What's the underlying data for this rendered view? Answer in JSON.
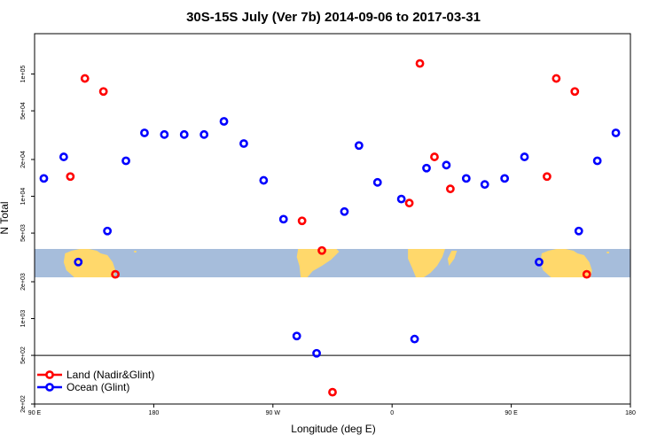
{
  "chart_data": {
    "type": "scatter",
    "title": "30S-15S July (Ver 7b)   2014-09-06 to 2017-03-31",
    "xlabel": "Longitude (deg E)",
    "ylabel": "N Total",
    "x_ticks": [
      {
        "value": 90,
        "label": "90 E"
      },
      {
        "value": 180,
        "label": "180"
      },
      {
        "value": 270,
        "label": "90 W"
      },
      {
        "value": 360,
        "label": "0"
      },
      {
        "value": 450,
        "label": "90 E"
      },
      {
        "value": 540,
        "label": "180"
      }
    ],
    "x_range": [
      90,
      540
    ],
    "y_scale": "log",
    "y_range": [
      200,
      200000
    ],
    "y_ticks": [
      {
        "value": 200,
        "label": "2e+02"
      },
      {
        "value": 500,
        "label": "5e+02"
      },
      {
        "value": 1000,
        "label": "1e+03"
      },
      {
        "value": 2000,
        "label": "2e+03"
      },
      {
        "value": 5000,
        "label": "5e+03"
      },
      {
        "value": 10000,
        "label": "1e+04"
      },
      {
        "value": 20000,
        "label": "2e+04"
      },
      {
        "value": 50000,
        "label": "5e+04"
      },
      {
        "value": 100000,
        "label": "1e+05"
      }
    ],
    "series": [
      {
        "name": "Land (Nadir&Glint)",
        "color": "#ff0000",
        "points": [
          {
            "x": 117,
            "y": 14500
          },
          {
            "x": 128,
            "y": 92000
          },
          {
            "x": 142,
            "y": 72000
          },
          {
            "x": 151,
            "y": 2300
          },
          {
            "x": 292,
            "y": 6300
          },
          {
            "x": 307,
            "y": 3600
          },
          {
            "x": 315,
            "y": 250
          },
          {
            "x": 373,
            "y": 8800
          },
          {
            "x": 381,
            "y": 122000
          },
          {
            "x": 392,
            "y": 21000
          },
          {
            "x": 404,
            "y": 11500
          },
          {
            "x": 477,
            "y": 14500
          },
          {
            "x": 484,
            "y": 92000
          },
          {
            "x": 498,
            "y": 72000
          },
          {
            "x": 507,
            "y": 2300
          }
        ]
      },
      {
        "name": "Ocean (Glint)",
        "color": "#0000ff",
        "points": [
          {
            "x": 97,
            "y": 14000
          },
          {
            "x": 112,
            "y": 21000
          },
          {
            "x": 123,
            "y": 2900
          },
          {
            "x": 145,
            "y": 5200
          },
          {
            "x": 159,
            "y": 19500
          },
          {
            "x": 173,
            "y": 33000
          },
          {
            "x": 188,
            "y": 32000
          },
          {
            "x": 203,
            "y": 32000
          },
          {
            "x": 218,
            "y": 32000
          },
          {
            "x": 233,
            "y": 41000
          },
          {
            "x": 248,
            "y": 27000
          },
          {
            "x": 263,
            "y": 13500
          },
          {
            "x": 278,
            "y": 6500
          },
          {
            "x": 288,
            "y": 720
          },
          {
            "x": 303,
            "y": 520
          },
          {
            "x": 324,
            "y": 7500
          },
          {
            "x": 335,
            "y": 26000
          },
          {
            "x": 349,
            "y": 13000
          },
          {
            "x": 367,
            "y": 9500
          },
          {
            "x": 377,
            "y": 680
          },
          {
            "x": 386,
            "y": 17000
          },
          {
            "x": 401,
            "y": 18000
          },
          {
            "x": 416,
            "y": 14000
          },
          {
            "x": 430,
            "y": 12500
          },
          {
            "x": 445,
            "y": 14000
          },
          {
            "x": 460,
            "y": 21000
          },
          {
            "x": 471,
            "y": 2900
          },
          {
            "x": 501,
            "y": 5200
          },
          {
            "x": 515,
            "y": 19500
          },
          {
            "x": 529,
            "y": 33000
          }
        ]
      }
    ],
    "legend": {
      "position": "bottom-left",
      "entries": [
        "Land (Nadir&Glint)",
        "Ocean (Glint)"
      ]
    },
    "map_strip": {
      "ocean_color": "#a6bddb",
      "land_color": "#ffd86b"
    }
  }
}
